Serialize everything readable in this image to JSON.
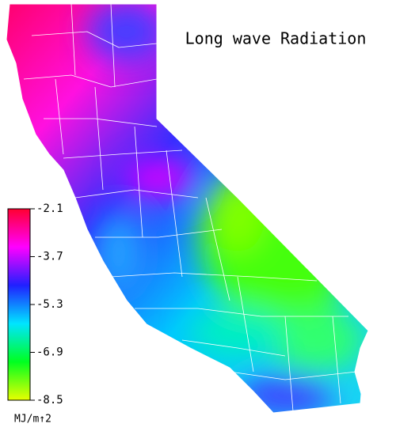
{
  "title": "Long wave Radiation",
  "colorbar": {
    "lim": [
      -8.5,
      -2.1
    ],
    "ticks": [
      -2.1,
      -3.7,
      -5.3,
      -6.9,
      -8.5
    ],
    "unit": "MJ/m↑2",
    "colors": [
      "#ff0030",
      "#ff00ff",
      "#2020ff",
      "#00e5ff",
      "#00ff20",
      "#e8ff00"
    ]
  }
}
